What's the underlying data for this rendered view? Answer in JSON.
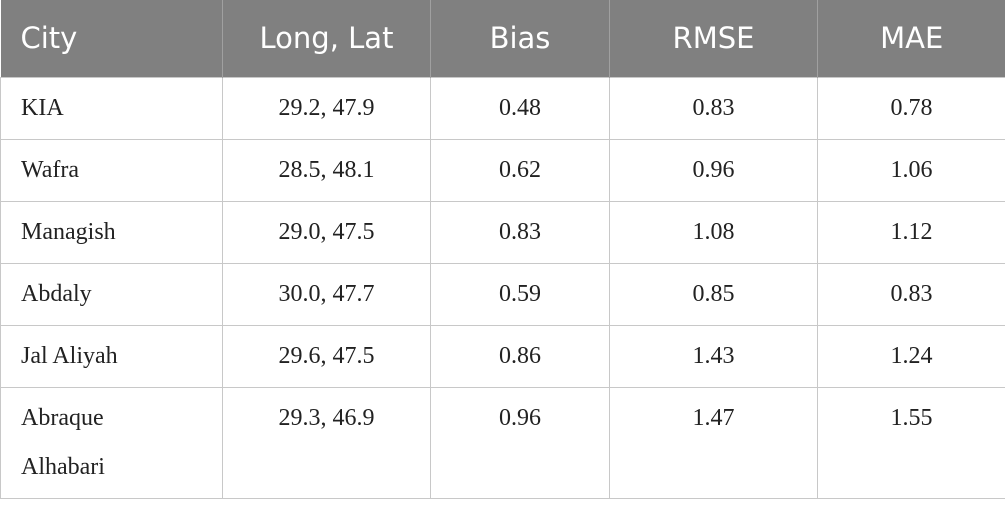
{
  "table": {
    "header": [
      "City",
      "Long, Lat",
      "Bias",
      "RMSE",
      "MAE"
    ],
    "rows": [
      [
        "KIA",
        "29.2, 47.9",
        0.48,
        0.83,
        0.78
      ],
      [
        "Wafra",
        "28.5, 48.1",
        0.62,
        0.96,
        1.06
      ],
      [
        "Managish",
        "29.0, 47.5",
        0.83,
        1.08,
        1.12
      ],
      [
        "Abdaly",
        "30.0, 47.7",
        0.59,
        0.85,
        0.83
      ],
      [
        "Jal Aliyah",
        "29.6, 47.5",
        0.86,
        1.43,
        1.24
      ],
      [
        "Abraque Alhabari",
        "29.3, 46.9",
        0.96,
        1.47,
        1.55
      ]
    ]
  }
}
